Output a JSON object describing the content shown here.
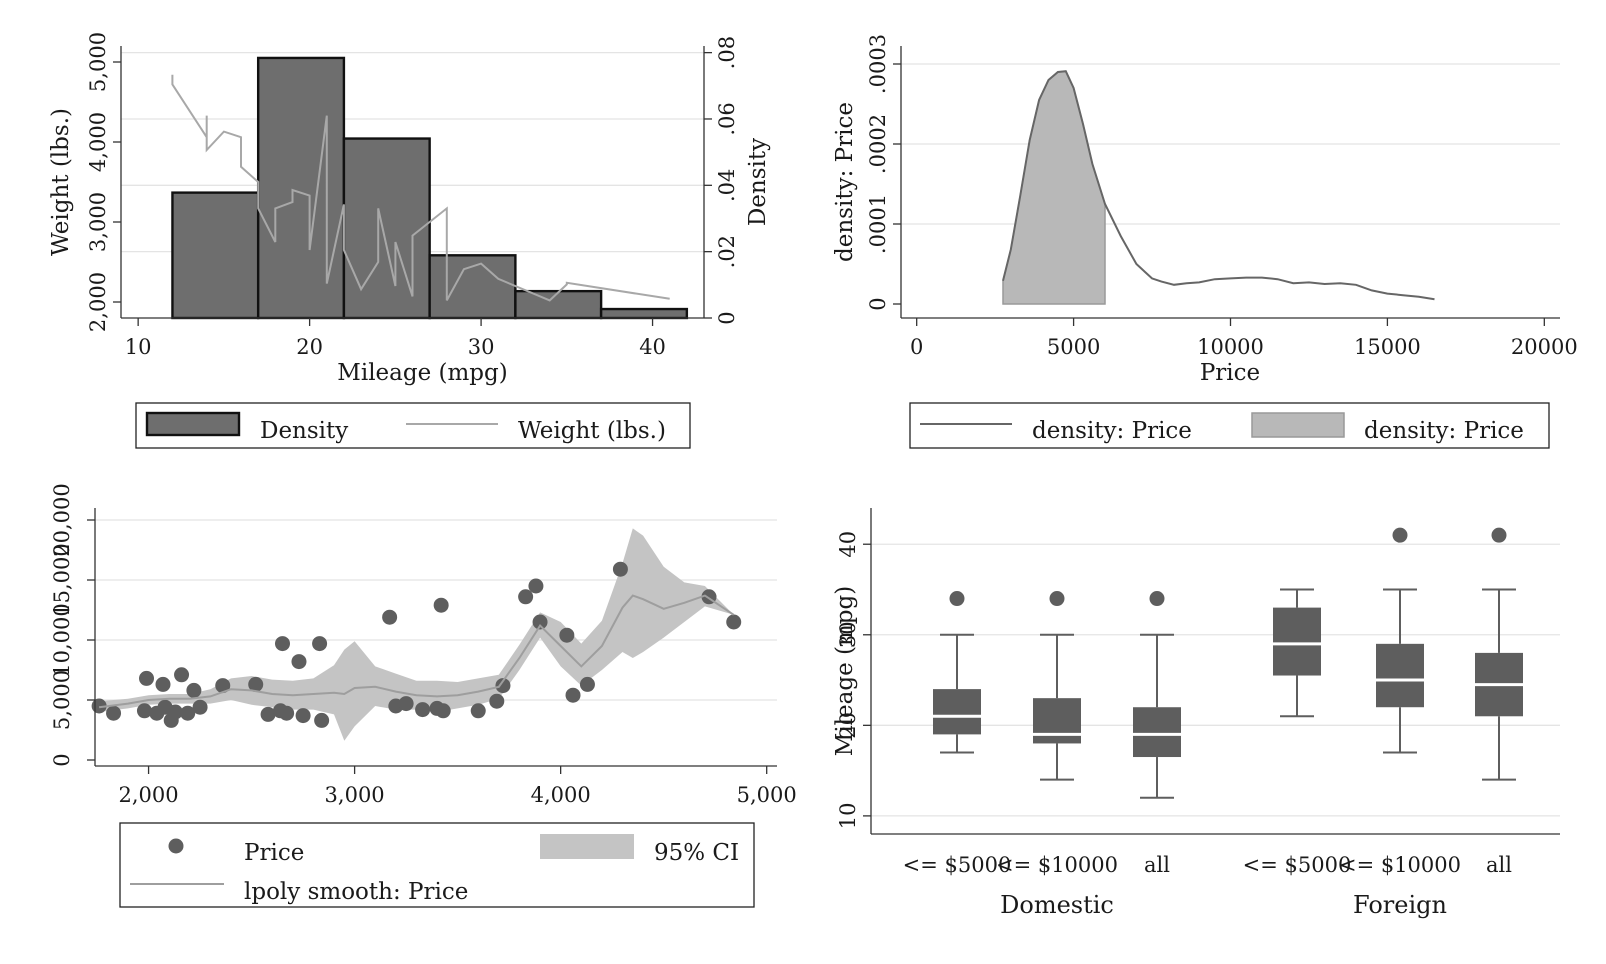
{
  "chart_data": [
    {
      "type": "bar",
      "subtype": "histogram with line overlay",
      "title": "",
      "xlabel": "Mileage (mpg)",
      "ylabel_left": "Weight (lbs.)",
      "ylabel_right": "Density",
      "xlim": [
        9,
        43
      ],
      "ylim_left": [
        1800,
        5200
      ],
      "ylim_right": [
        0,
        0.082
      ],
      "x_ticks": [
        10,
        20,
        30,
        40
      ],
      "x_tick_labels": [
        "10",
        "20",
        "30",
        "40"
      ],
      "y_left_ticks": [
        2000,
        3000,
        4000,
        5000
      ],
      "y_left_tick_labels": [
        "2,000",
        "3,000",
        "4,000",
        "5,000"
      ],
      "y_right_ticks": [
        0,
        0.02,
        0.04,
        0.06,
        0.08
      ],
      "y_right_tick_labels": [
        "0",
        ".02",
        ".04",
        ".06",
        ".08"
      ],
      "grid": true,
      "legend_position": "bottom",
      "legend": [
        {
          "label": "Density",
          "kind": "bar"
        },
        {
          "label": "Weight (lbs.)",
          "kind": "line"
        }
      ],
      "histogram": {
        "name": "Density",
        "bin_edges": [
          12,
          17,
          22,
          27,
          32,
          37,
          42
        ],
        "values": [
          0.0378,
          0.0784,
          0.0541,
          0.0189,
          0.0081,
          0.0027
        ],
        "color": "#6e6e6e"
      },
      "series": [
        {
          "name": "Weight (lbs.)",
          "color": "#a8a8a8",
          "x": [
            12,
            12,
            14,
            14,
            14,
            15,
            16,
            16,
            17,
            17,
            18,
            18,
            19,
            19,
            20,
            20,
            21,
            21,
            22,
            22,
            23,
            24,
            24,
            25,
            25,
            26,
            26,
            28,
            28,
            29,
            30,
            31,
            34,
            35,
            35,
            41
          ],
          "y": [
            4840,
            4720,
            4060,
            4330,
            3900,
            4130,
            4060,
            3690,
            3500,
            3170,
            2750,
            3170,
            3250,
            3400,
            3330,
            2650,
            4330,
            2230,
            3220,
            2650,
            2160,
            2500,
            3170,
            2200,
            2750,
            2070,
            2830,
            3170,
            2020,
            2410,
            2480,
            2290,
            2020,
            2220,
            2240,
            2040
          ]
        }
      ]
    },
    {
      "type": "area",
      "subtype": "kernel density",
      "title": "",
      "xlabel": "Price",
      "ylabel": "density: Price",
      "xlim": [
        -500,
        20500
      ],
      "ylim": [
        0,
        0.0003
      ],
      "x_ticks": [
        0,
        5000,
        10000,
        15000,
        20000
      ],
      "x_tick_labels": [
        "0",
        "5000",
        "10000",
        "15000",
        "20000"
      ],
      "y_ticks": [
        0,
        0.0001,
        0.0002,
        0.0003
      ],
      "y_tick_labels": [
        "0",
        ".0001",
        ".0002",
        ".0003"
      ],
      "grid": true,
      "legend_position": "bottom",
      "legend": [
        {
          "label": "density: Price",
          "kind": "line"
        },
        {
          "label": "density: Price",
          "kind": "area"
        }
      ],
      "series": [
        {
          "name": "density: Price",
          "kind": "line",
          "color": "#666666",
          "x": [
            2750,
            3000,
            3300,
            3600,
            3900,
            4200,
            4500,
            4750,
            5000,
            5300,
            5600,
            6000,
            6500,
            7000,
            7500,
            7800,
            8200,
            8600,
            9000,
            9500,
            10000,
            10500,
            11000,
            11500,
            12000,
            12500,
            13000,
            13500,
            14000,
            14500,
            15000,
            15500,
            16000,
            16500
          ],
          "y": [
            2.9e-05,
            6.8e-05,
            0.000135,
            0.000205,
            0.000255,
            0.00028,
            0.00029,
            0.000291,
            0.00027,
            0.000225,
            0.000175,
            0.000125,
            8.5e-05,
            5e-05,
            3.2e-05,
            2.8e-05,
            2.4e-05,
            2.6e-05,
            2.7e-05,
            3.1e-05,
            3.2e-05,
            3.3e-05,
            3.3e-05,
            3.1e-05,
            2.6e-05,
            2.7e-05,
            2.5e-05,
            2.6e-05,
            2.4e-05,
            1.7e-05,
            1.3e-05,
            1.1e-05,
            9e-06,
            6e-06
          ]
        },
        {
          "name": "density: Price",
          "kind": "area",
          "color": "#b8b8b8",
          "x_range": [
            2750,
            6000
          ]
        }
      ]
    },
    {
      "type": "scatter",
      "subtype": "scatter with lpoly smooth and 95% CI",
      "title": "",
      "xlabel": "",
      "ylabel": "",
      "xlim": [
        1740,
        5050
      ],
      "ylim": [
        -500,
        21000
      ],
      "x_ticks": [
        2000,
        3000,
        4000,
        5000
      ],
      "x_tick_labels": [
        "2,000",
        "3,000",
        "4,000",
        "5,000"
      ],
      "y_ticks": [
        0,
        5000,
        10000,
        15000,
        20000
      ],
      "y_tick_labels": [
        "0",
        "5,000",
        "10,000",
        "15,000",
        "20,000"
      ],
      "grid": true,
      "legend_position": "bottom",
      "legend": [
        {
          "label": "Price",
          "kind": "point"
        },
        {
          "label": "95% CI",
          "kind": "area"
        },
        {
          "label": "lpoly smooth: Price",
          "kind": "line"
        }
      ],
      "points": {
        "name": "Price",
        "color": "#5e5e5e",
        "x": [
          1760,
          1830,
          1980,
          1990,
          2040,
          2070,
          2080,
          2110,
          2130,
          2160,
          2190,
          2220,
          2250,
          2360,
          2520,
          2580,
          2640,
          2650,
          2670,
          2730,
          2750,
          2830,
          2840,
          3170,
          3200,
          3250,
          3330,
          3400,
          3420,
          3430,
          3600,
          3690,
          3720,
          3830,
          3880,
          3900,
          4030,
          4060,
          4130,
          4290,
          4720,
          4840
        ],
        "y": [
          4500,
          3900,
          4100,
          6800,
          3900,
          6300,
          4400,
          3300,
          4000,
          7100,
          3900,
          5800,
          4400,
          6200,
          6300,
          3800,
          4100,
          9700,
          3900,
          8200,
          3700,
          9700,
          3300,
          11900,
          4500,
          4700,
          4200,
          4300,
          12900,
          4100,
          4100,
          4900,
          6200,
          13600,
          14500,
          11500,
          10400,
          5400,
          6300,
          15900,
          13600,
          11500
        ]
      },
      "smooth": {
        "name": "lpoly smooth: Price",
        "color": "#9e9e9e",
        "x": [
          1760,
          1900,
          2000,
          2100,
          2200,
          2300,
          2400,
          2500,
          2600,
          2700,
          2800,
          2900,
          2950,
          3000,
          3100,
          3200,
          3300,
          3400,
          3500,
          3600,
          3700,
          3800,
          3900,
          4000,
          4100,
          4200,
          4300,
          4350,
          4400,
          4500,
          4600,
          4700,
          4840
        ],
        "y": [
          4400,
          4700,
          5000,
          5100,
          5100,
          5300,
          5900,
          5800,
          5500,
          5400,
          5500,
          5600,
          5500,
          6000,
          6100,
          5700,
          5400,
          5300,
          5400,
          5700,
          6100,
          8500,
          11200,
          9500,
          7800,
          9500,
          12700,
          13700,
          13400,
          12600,
          13100,
          13700,
          12100
        ]
      },
      "ci": {
        "name": "95% CI",
        "color": "#c4c4c4",
        "x": [
          1760,
          1900,
          2000,
          2100,
          2200,
          2300,
          2400,
          2500,
          2600,
          2700,
          2800,
          2900,
          2950,
          3000,
          3100,
          3200,
          3300,
          3400,
          3500,
          3600,
          3700,
          3800,
          3900,
          4000,
          4100,
          4200,
          4300,
          4350,
          4400,
          4500,
          4600,
          4700,
          4840
        ],
        "lower": [
          4000,
          4300,
          4600,
          4700,
          4700,
          4700,
          5000,
          4600,
          4400,
          4200,
          4200,
          3800,
          1600,
          2800,
          4500,
          4200,
          4200,
          4000,
          4300,
          4600,
          5100,
          7500,
          10200,
          7800,
          6200,
          7500,
          9000,
          8500,
          9000,
          10200,
          11500,
          12800,
          12100
        ],
        "upper": [
          4900,
          5100,
          5400,
          5500,
          5500,
          5900,
          6800,
          7000,
          6700,
          6600,
          6800,
          7900,
          9200,
          9900,
          7800,
          7200,
          6600,
          6600,
          6500,
          6800,
          7100,
          9600,
          12300,
          11500,
          9700,
          11600,
          16400,
          19300,
          18700,
          16100,
          14800,
          14500,
          12100
        ]
      }
    },
    {
      "type": "box",
      "title": "",
      "xlabel": "",
      "ylabel": "Mileage (mpg)",
      "ylim": [
        8,
        44
      ],
      "y_ticks": [
        10,
        20,
        30,
        40
      ],
      "y_tick_labels": [
        "10",
        "20",
        "30",
        "40"
      ],
      "grid": true,
      "groups": [
        "Domestic",
        "Foreign"
      ],
      "categories": [
        "<= $5000",
        "<= $10000",
        "all"
      ],
      "box_color": "#5e5e5e",
      "boxes": [
        {
          "group": "Domestic",
          "category": "<= $5000",
          "whisker_low": 17,
          "q1": 19,
          "median": 21,
          "q3": 24,
          "whisker_high": 30,
          "outliers": [
            34
          ]
        },
        {
          "group": "Domestic",
          "category": "<= $10000",
          "whisker_low": 14,
          "q1": 18,
          "median": 19,
          "q3": 23,
          "whisker_high": 30,
          "outliers": [
            34
          ]
        },
        {
          "group": "Domestic",
          "category": "all",
          "whisker_low": 12,
          "q1": 16.5,
          "median": 19,
          "q3": 22,
          "whisker_high": 30,
          "outliers": [
            34
          ]
        },
        {
          "group": "Foreign",
          "category": "<= $5000",
          "whisker_low": 21,
          "q1": 25.5,
          "median": 29,
          "q3": 33,
          "whisker_high": 35,
          "outliers": []
        },
        {
          "group": "Foreign",
          "category": "<= $10000",
          "whisker_low": 17,
          "q1": 22,
          "median": 25,
          "q3": 29,
          "whisker_high": 35,
          "outliers": [
            41
          ]
        },
        {
          "group": "Foreign",
          "category": "all",
          "whisker_low": 14,
          "q1": 21,
          "median": 24.5,
          "q3": 28,
          "whisker_high": 35,
          "outliers": [
            41
          ]
        }
      ]
    }
  ]
}
